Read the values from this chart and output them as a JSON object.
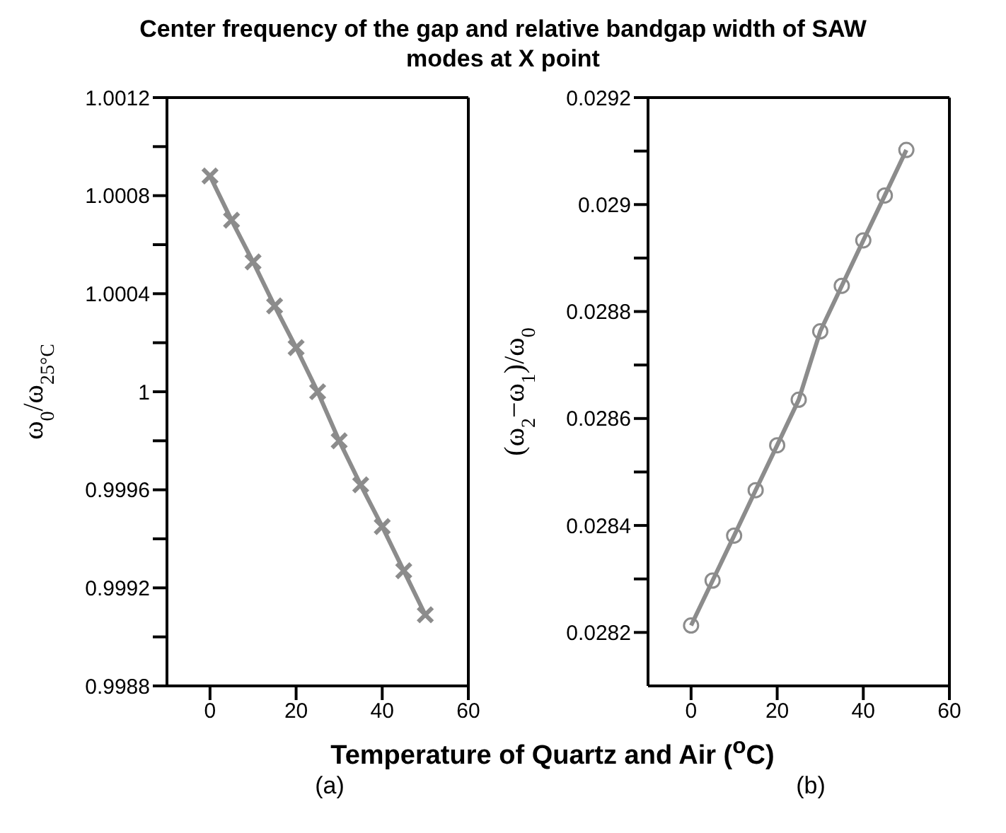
{
  "chart_data": [
    {
      "type": "line",
      "title": "Center frequency of the gap and relative bandgap width of SAW modes at X point",
      "xlabel": "Temperature of Quartz and Air ($^{o}$C)",
      "ylabel": "ω$_{0}$/ω$_{25°C}$",
      "annotations": [
        "(a)"
      ],
      "x": [
        0,
        5,
        10,
        15,
        20,
        25,
        30,
        35,
        40,
        45,
        50
      ],
      "series": [
        {
          "color": "#8c8c8c",
          "values": [
            1.00088,
            1.0007,
            1.00053,
            1.00035,
            1.00018,
            1.0,
            0.9998,
            0.99962,
            0.99945,
            0.99927,
            0.99909
          ]
        }
      ],
      "xlim": [
        -10,
        60
      ],
      "xticks": [
        0,
        20,
        40,
        60
      ],
      "ylim": [
        0.9988,
        1.0012
      ],
      "yticks": [
        0.9988,
        {
          "value": 0.999,
          "label": null
        },
        0.9992,
        {
          "value": 0.9994,
          "label": null
        },
        0.9996,
        {
          "value": 0.9998,
          "label": null
        },
        1,
        {
          "value": 1.0002,
          "label": null
        },
        1.0004,
        {
          "value": 1.0006,
          "label": null
        },
        1.0008,
        {
          "value": 1.001,
          "label": null
        },
        1.0012
      ],
      "grid": false,
      "legend": false,
      "marker": "cross",
      "line_style": "solid"
    },
    {
      "type": "line",
      "ylabel": "(ω$_{2}$−ω$_{1}$)/ω$_{0}$",
      "annotations": [
        "(b)"
      ],
      "x": [
        0,
        5,
        10,
        15,
        20,
        25,
        30,
        35,
        40,
        45,
        50
      ],
      "series": [
        {
          "color": "#8c8c8c",
          "values": [
            0.028213,
            0.028297,
            0.028381,
            0.028466,
            0.02855,
            0.028635,
            0.028763,
            0.028848,
            0.028933,
            0.029017,
            0.029102
          ]
        }
      ],
      "xlim": [
        -10,
        60
      ],
      "xticks": [
        0,
        20,
        40,
        60
      ],
      "ylim": [
        0.0281,
        0.0292
      ],
      "yticks": [
        0.0282,
        {
          "value": 0.0283,
          "label": null
        },
        0.0284,
        {
          "value": 0.0285,
          "label": null
        },
        0.0286,
        {
          "value": 0.0287,
          "label": null
        },
        0.0288,
        {
          "value": 0.0289,
          "label": null
        },
        0.029,
        {
          "value": 0.0291,
          "label": null
        },
        0.0292
      ],
      "grid": false,
      "legend": false,
      "marker": "circle",
      "line_style": "solid"
    }
  ]
}
